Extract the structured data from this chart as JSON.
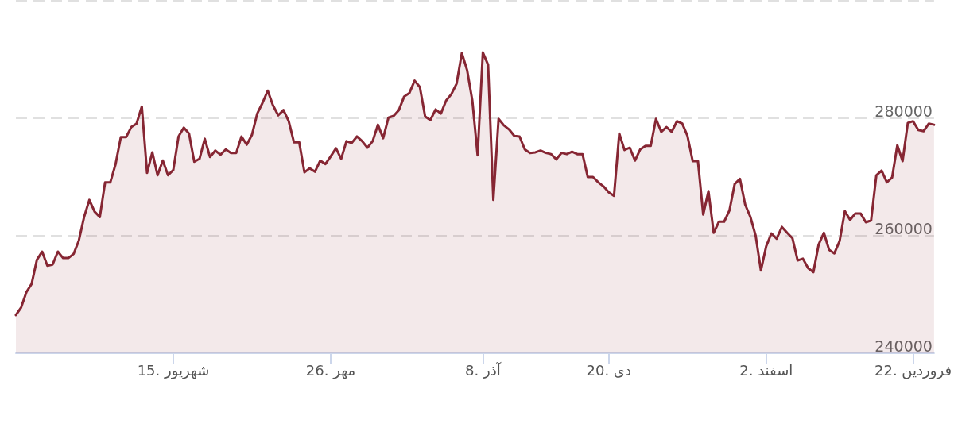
{
  "chart_data": {
    "type": "area",
    "color": "#862633",
    "marker": "none",
    "line_style": "solid",
    "grid": "y",
    "categories": [
      null,
      null,
      null,
      null,
      null,
      null,
      null,
      null,
      null,
      null,
      null,
      null,
      null,
      null,
      null,
      null,
      null,
      null,
      null,
      null,
      null,
      null,
      null,
      null,
      null,
      null,
      null,
      null,
      null,
      null,
      "15. شهریور",
      null,
      null,
      null,
      null,
      null,
      null,
      null,
      null,
      null,
      null,
      null,
      null,
      null,
      null,
      null,
      null,
      null,
      null,
      null,
      null,
      null,
      null,
      null,
      null,
      null,
      null,
      null,
      null,
      null,
      "26. مهر",
      null,
      null,
      null,
      null,
      null,
      null,
      null,
      null,
      null,
      null,
      null,
      null,
      null,
      null,
      null,
      null,
      null,
      null,
      null,
      null,
      null,
      null,
      null,
      null,
      null,
      null,
      null,
      null,
      "8. آذر",
      null,
      null,
      null,
      null,
      null,
      null,
      null,
      null,
      null,
      null,
      null,
      null,
      null,
      null,
      null,
      null,
      null,
      null,
      null,
      null,
      null,
      null,
      null,
      "20. دی",
      null,
      null,
      null,
      null,
      null,
      null,
      null,
      null,
      null,
      null,
      null,
      null,
      null,
      null,
      null,
      null,
      null,
      null,
      null,
      null,
      null,
      null,
      null,
      null,
      null,
      null,
      null,
      null,
      null,
      "2. اسفند",
      null,
      null,
      null,
      null,
      null,
      null,
      null,
      null,
      null,
      null,
      null,
      null,
      null,
      null,
      null,
      null,
      null,
      null,
      null,
      null,
      null,
      null,
      null,
      null,
      null,
      null,
      null,
      "22. فروردین",
      null,
      null,
      null,
      null
    ],
    "ylim": [
      240000,
      300000
    ],
    "yticks": [
      240000,
      260000,
      280000,
      {
        "value": 300000,
        "label": null
      }
    ],
    "values": [
      246500,
      247800,
      250400,
      251800,
      255900,
      257300,
      254900,
      255100,
      257300,
      256200,
      256200,
      256900,
      259200,
      263200,
      266100,
      264100,
      263200,
      269100,
      269100,
      272200,
      276800,
      276800,
      278500,
      279100,
      282000,
      270700,
      274200,
      270300,
      272800,
      270300,
      271200,
      276900,
      278400,
      277400,
      272600,
      273100,
      276500,
      273400,
      274500,
      273800,
      274700,
      274100,
      274100,
      276900,
      275500,
      277200,
      280800,
      282600,
      284700,
      282200,
      280500,
      281400,
      279500,
      275900,
      275900,
      270800,
      271500,
      270900,
      272800,
      272200,
      273500,
      274900,
      273100,
      276100,
      275800,
      276900,
      276100,
      275000,
      276100,
      278900,
      276600,
      280100,
      280400,
      281400,
      283700,
      284300,
      286400,
      285300,
      280300,
      279700,
      281500,
      280800,
      283000,
      284100,
      285900,
      291100,
      288200,
      283000,
      273700,
      291200,
      289100,
      266100,
      279900,
      278800,
      278100,
      277000,
      276900,
      274700,
      274100,
      274200,
      274500,
      274100,
      273900,
      273000,
      274100,
      273900,
      274300,
      273900,
      273900,
      270000,
      270000,
      269100,
      268400,
      267400,
      266800,
      277400,
      274600,
      275000,
      272800,
      274700,
      275300,
      275300,
      279900,
      277700,
      278500,
      277700,
      279500,
      279100,
      277000,
      272700,
      272700,
      263600,
      267600,
      260500,
      262400,
      262400,
      264300,
      268800,
      269700,
      265300,
      263200,
      260000,
      254100,
      258200,
      260400,
      259500,
      261500,
      260500,
      259600,
      255800,
      256100,
      254500,
      253800,
      258500,
      260500,
      257600,
      257000,
      259100,
      264200,
      262700,
      263800,
      263800,
      262300,
      262600,
      270300,
      271100,
      269100,
      269900,
      275400,
      272700,
      279200,
      279500,
      278000,
      277800,
      279100,
      278900
    ]
  }
}
